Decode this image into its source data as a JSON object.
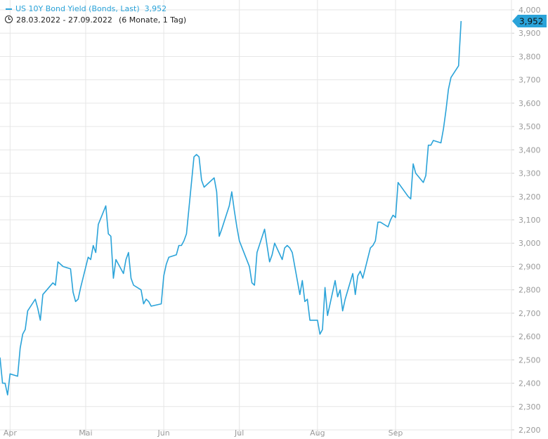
{
  "legend": {
    "series_label": "US 10Y Bond Yield (Bonds, Last)",
    "last_value": "3,952"
  },
  "range": {
    "dates": "28.03.2022 - 27.09.2022",
    "period": "(6 Monate, 1 Tag)"
  },
  "colors": {
    "line": "#2aa3d9",
    "grid": "#e6e6e6",
    "axis_text": "#9a9a9a",
    "badge_text": "#111111"
  },
  "chart_data": {
    "type": "line",
    "title": "",
    "xlabel": "",
    "ylabel": "",
    "ylim": [
      2.2,
      4.0
    ],
    "yticks": [
      2.2,
      2.3,
      2.4,
      2.5,
      2.6,
      2.7,
      2.8,
      2.9,
      3.0,
      3.1,
      3.2,
      3.3,
      3.4,
      3.5,
      3.6,
      3.7,
      3.8,
      3.9,
      4.0
    ],
    "ytick_labels": [
      "2,200",
      "2,300",
      "2,400",
      "2,500",
      "2,600",
      "2,700",
      "2,800",
      "2,900",
      "3,000",
      "3,100",
      "3,200",
      "3,300",
      "3,400",
      "3,500",
      "3,600",
      "3,700",
      "3,800",
      "3,900",
      "4,000"
    ],
    "xlim": [
      "2022-03-28",
      "2022-10-17"
    ],
    "xticks": [
      "2022-04-01",
      "2022-05-01",
      "2022-06-01",
      "2022-07-01",
      "2022-08-01",
      "2022-09-01"
    ],
    "xtick_labels": [
      "Apr",
      "Mai",
      "Jun",
      "Jul",
      "Aug",
      "Sep"
    ],
    "last_value_label": "3,952",
    "grid": true,
    "series": [
      {
        "name": "US 10Y Bond Yield (Bonds, Last)",
        "color": "#2aa3d9",
        "x": [
          "2022-03-28",
          "2022-03-29",
          "2022-03-30",
          "2022-03-31",
          "2022-04-01",
          "2022-04-04",
          "2022-04-05",
          "2022-04-06",
          "2022-04-07",
          "2022-04-08",
          "2022-04-11",
          "2022-04-12",
          "2022-04-13",
          "2022-04-14",
          "2022-04-18",
          "2022-04-19",
          "2022-04-20",
          "2022-04-21",
          "2022-04-22",
          "2022-04-25",
          "2022-04-26",
          "2022-04-27",
          "2022-04-28",
          "2022-04-29",
          "2022-05-02",
          "2022-05-03",
          "2022-05-04",
          "2022-05-05",
          "2022-05-06",
          "2022-05-09",
          "2022-05-10",
          "2022-05-11",
          "2022-05-12",
          "2022-05-13",
          "2022-05-16",
          "2022-05-17",
          "2022-05-18",
          "2022-05-19",
          "2022-05-20",
          "2022-05-23",
          "2022-05-24",
          "2022-05-25",
          "2022-05-26",
          "2022-05-27",
          "2022-05-31",
          "2022-06-01",
          "2022-06-02",
          "2022-06-03",
          "2022-06-06",
          "2022-06-07",
          "2022-06-08",
          "2022-06-09",
          "2022-06-10",
          "2022-06-13",
          "2022-06-14",
          "2022-06-15",
          "2022-06-16",
          "2022-06-17",
          "2022-06-21",
          "2022-06-22",
          "2022-06-23",
          "2022-06-24",
          "2022-06-27",
          "2022-06-28",
          "2022-06-29",
          "2022-06-30",
          "2022-07-01",
          "2022-07-05",
          "2022-07-06",
          "2022-07-07",
          "2022-07-08",
          "2022-07-11",
          "2022-07-12",
          "2022-07-13",
          "2022-07-14",
          "2022-07-15",
          "2022-07-18",
          "2022-07-19",
          "2022-07-20",
          "2022-07-21",
          "2022-07-22",
          "2022-07-25",
          "2022-07-26",
          "2022-07-27",
          "2022-07-28",
          "2022-07-29",
          "2022-08-01",
          "2022-08-02",
          "2022-08-03",
          "2022-08-04",
          "2022-08-05",
          "2022-08-08",
          "2022-08-09",
          "2022-08-10",
          "2022-08-11",
          "2022-08-12",
          "2022-08-15",
          "2022-08-16",
          "2022-08-17",
          "2022-08-18",
          "2022-08-19",
          "2022-08-22",
          "2022-08-23",
          "2022-08-24",
          "2022-08-25",
          "2022-08-26",
          "2022-08-29",
          "2022-08-30",
          "2022-08-31",
          "2022-09-01",
          "2022-09-02",
          "2022-09-06",
          "2022-09-07",
          "2022-09-08",
          "2022-09-09",
          "2022-09-12",
          "2022-09-13",
          "2022-09-14",
          "2022-09-15",
          "2022-09-16",
          "2022-09-19",
          "2022-09-20",
          "2022-09-21",
          "2022-09-22",
          "2022-09-23",
          "2022-09-26",
          "2022-09-27"
        ],
        "y": [
          2.51,
          2.4,
          2.4,
          2.35,
          2.44,
          2.43,
          2.55,
          2.61,
          2.63,
          2.71,
          2.76,
          2.72,
          2.67,
          2.78,
          2.83,
          2.82,
          2.92,
          2.91,
          2.9,
          2.89,
          2.79,
          2.75,
          2.76,
          2.81,
          2.94,
          2.93,
          2.99,
          2.96,
          3.08,
          3.16,
          3.04,
          3.03,
          2.85,
          2.93,
          2.87,
          2.93,
          2.96,
          2.85,
          2.82,
          2.8,
          2.74,
          2.76,
          2.75,
          2.73,
          2.74,
          2.86,
          2.91,
          2.94,
          2.95,
          2.99,
          2.99,
          3.01,
          3.04,
          3.37,
          3.38,
          3.37,
          3.27,
          3.24,
          3.28,
          3.22,
          3.03,
          3.06,
          3.16,
          3.22,
          3.14,
          3.07,
          3.01,
          2.9,
          2.83,
          2.82,
          2.96,
          3.06,
          2.99,
          2.92,
          2.95,
          3.0,
          2.93,
          2.98,
          2.99,
          2.98,
          2.96,
          2.78,
          2.84,
          2.75,
          2.76,
          2.67,
          2.67,
          2.61,
          2.63,
          2.81,
          2.69,
          2.84,
          2.77,
          2.8,
          2.71,
          2.76,
          2.87,
          2.78,
          2.86,
          2.88,
          2.85,
          2.98,
          2.99,
          3.01,
          3.09,
          3.09,
          3.07,
          3.1,
          3.12,
          3.11,
          3.26,
          3.2,
          3.19,
          3.34,
          3.3,
          3.26,
          3.29,
          3.42,
          3.42,
          3.44,
          3.43,
          3.49,
          3.57,
          3.66,
          3.71,
          3.76,
          3.952
        ]
      }
    ]
  }
}
